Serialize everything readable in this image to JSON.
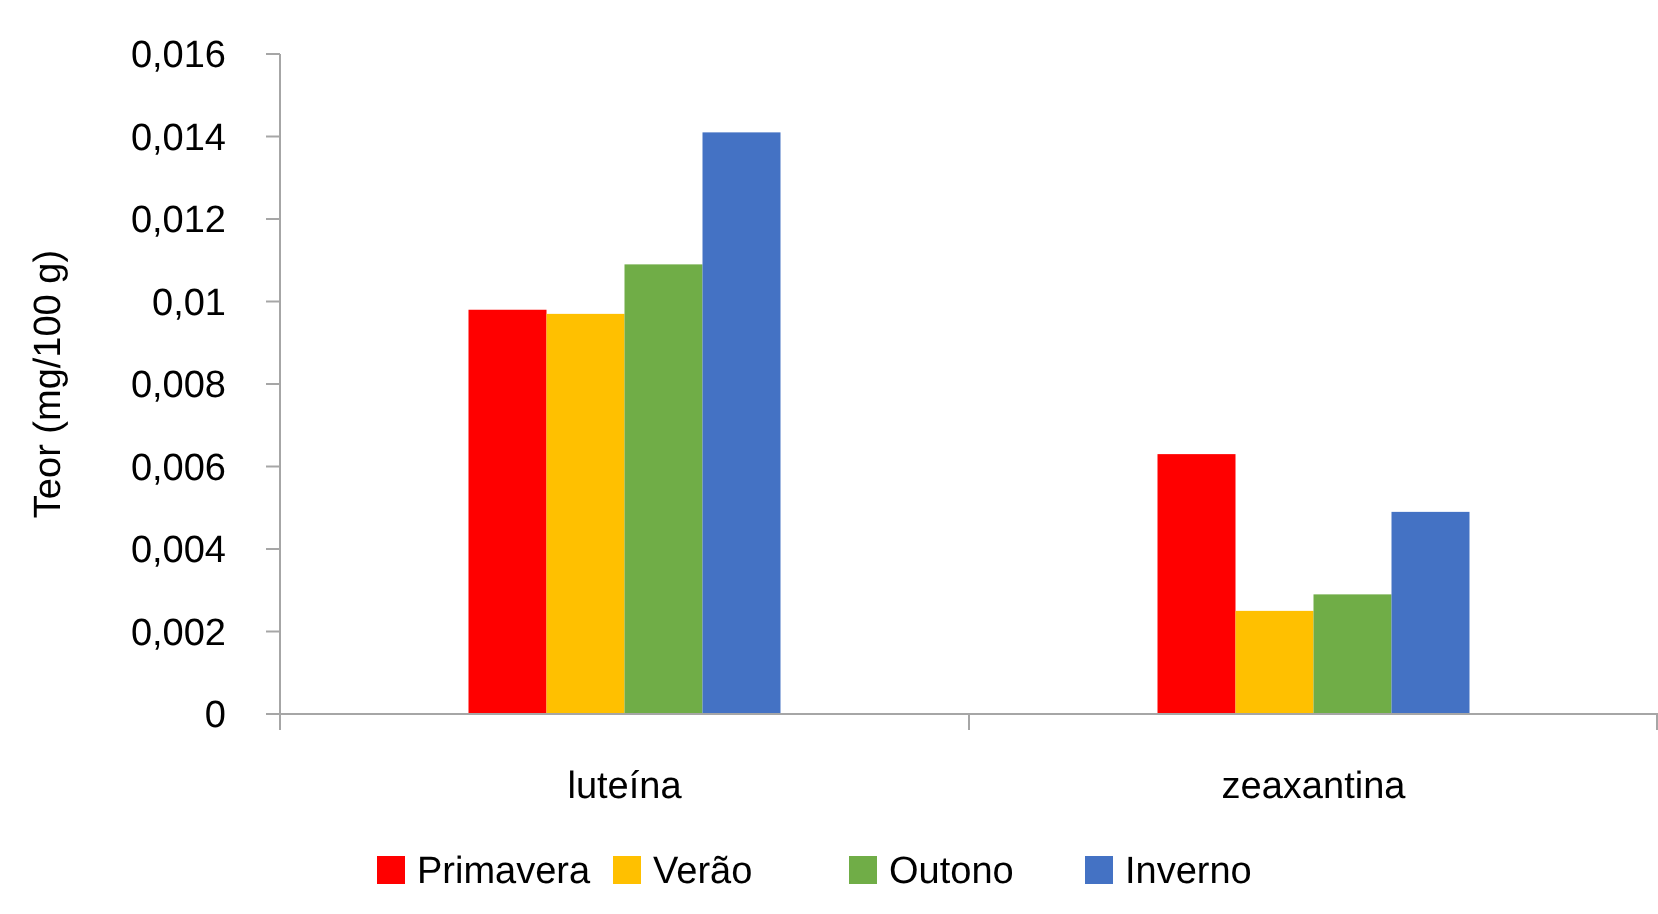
{
  "chart_data": {
    "type": "bar",
    "ylabel": "Teor (mg/100 g)",
    "categories": [
      "luteína",
      "zeaxantina"
    ],
    "series": [
      {
        "name": "Primavera",
        "color": "#ff0000",
        "values": [
          0.0098,
          0.0063
        ]
      },
      {
        "name": "Verão",
        "color": "#ffc000",
        "values": [
          0.0097,
          0.0025
        ]
      },
      {
        "name": "Outono",
        "color": "#70ad47",
        "values": [
          0.0109,
          0.0029
        ]
      },
      {
        "name": "Inverno",
        "color": "#4472c4",
        "values": [
          0.0141,
          0.0049
        ]
      }
    ],
    "ylim": [
      0,
      0.016
    ],
    "yticks": [
      0,
      {
        "value": 0.002,
        "label": "0,002"
      },
      {
        "value": 0.004,
        "label": "0,004"
      },
      {
        "value": 0.006,
        "label": "0,006"
      },
      {
        "value": 0.008,
        "label": "0,008"
      },
      {
        "value": 0.01,
        "label": "0,01"
      },
      {
        "value": 0.012,
        "label": "0,012"
      },
      {
        "value": 0.014,
        "label": "0,014"
      },
      {
        "value": 0.016,
        "label": "0,016"
      }
    ],
    "grid": false,
    "legend": "bottom"
  }
}
